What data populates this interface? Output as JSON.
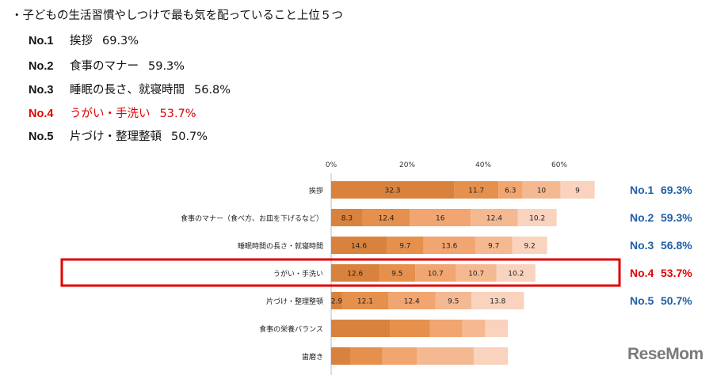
{
  "heading": "・子どもの生活習慣やしつけで最も気を配っていること上位５つ",
  "ranking": [
    {
      "no": "No.1",
      "label": "挨拶",
      "value": "69.3%"
    },
    {
      "no": "No.2",
      "label": "食事のマナー",
      "value": "59.3%"
    },
    {
      "no": "No.3",
      "label": "睡眠の長さ、就寝時間",
      "value": "56.8%"
    },
    {
      "no": "No.4",
      "label": "うがい・手洗い",
      "value": "53.7%"
    },
    {
      "no": "No.5",
      "label": "片づけ・整理整頓",
      "value": "50.7%"
    }
  ],
  "watermark": "ReseMom",
  "colors": {
    "highlight": "#e00000",
    "rank_blue": "#1f5fa8",
    "segments": [
      "#d9823d",
      "#e5904c",
      "#f1a570",
      "#f5b992",
      "#f9d3bd"
    ]
  },
  "chart_data": {
    "type": "bar",
    "orientation": "horizontal",
    "stacked": true,
    "xlim": [
      0,
      70
    ],
    "xticks": [
      "0%",
      "20%",
      "40%",
      "60%"
    ],
    "grid": false,
    "categories": [
      "挨拶",
      "食事のマナー（食べ方、お皿を下げるなど）",
      "睡眠時間の長さ・就寝時間",
      "うがい・手洗い",
      "片づけ・整理整頓",
      "食事の栄養バランス",
      "歯磨き"
    ],
    "segments": [
      {
        "values": [
          32.3,
          11.7,
          6.3,
          10,
          9
        ],
        "labels": [
          "32.3",
          "11.7",
          "6.3",
          "10",
          "9"
        ]
      },
      {
        "values": [
          8.3,
          12.4,
          16,
          12.4,
          10.2
        ],
        "labels": [
          "8.3",
          "12.4",
          "16",
          "12.4",
          "10.2"
        ]
      },
      {
        "values": [
          14.6,
          9.7,
          13.6,
          9.7,
          9.2
        ],
        "labels": [
          "14.6",
          "9.7",
          "13.6",
          "9.7",
          "9.2"
        ]
      },
      {
        "values": [
          12.6,
          9.5,
          10.7,
          10.7,
          10.2
        ],
        "labels": [
          "12.6",
          "9.5",
          "10.7",
          "10.7",
          "10.2"
        ]
      },
      {
        "values": [
          2.9,
          12.1,
          12.4,
          9.5,
          13.8
        ],
        "labels": [
          "2.9",
          "12.1",
          "12.4",
          "9.5",
          "13.8"
        ]
      },
      {
        "values": [
          15.5,
          10.5,
          8.5,
          6,
          6
        ],
        "labels": [
          "",
          "",
          "",
          "",
          ""
        ]
      },
      {
        "values": [
          5,
          8.5,
          9,
          15,
          9
        ],
        "labels": [
          "",
          "",
          "",
          "",
          ""
        ]
      }
    ],
    "annotations": [
      {
        "row": 0,
        "no": "No.1",
        "value": "69.3%"
      },
      {
        "row": 1,
        "no": "No.2",
        "value": "59.3%"
      },
      {
        "row": 2,
        "no": "No.3",
        "value": "56.8%"
      },
      {
        "row": 3,
        "no": "No.4",
        "value": "53.7%"
      },
      {
        "row": 4,
        "no": "No.5",
        "value": "50.7%"
      }
    ],
    "highlighted_row": 3
  }
}
